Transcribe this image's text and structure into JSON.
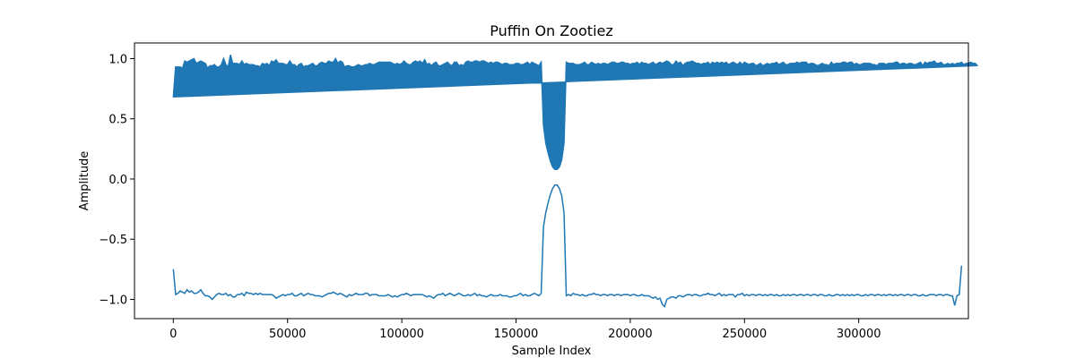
{
  "chart_data": {
    "type": "line",
    "title": "Puffin On Zootiez",
    "xlabel": "Sample Index",
    "ylabel": "Amplitude",
    "xlim": [
      -17000,
      348000
    ],
    "ylim": [
      -1.16,
      1.13
    ],
    "xticks": [
      0,
      50000,
      100000,
      150000,
      200000,
      250000,
      300000
    ],
    "xtick_labels": [
      "0",
      "50000",
      "100000",
      "150000",
      "200000",
      "250000",
      "300000"
    ],
    "yticks": [
      -1.0,
      -0.5,
      0.0,
      0.5,
      1.0
    ],
    "ytick_labels": [
      "−1.0",
      "−0.5",
      "0.0",
      "0.5",
      "1.0"
    ],
    "grid": false,
    "series": [
      {
        "color": "#1f77b4",
        "sample_count": 331000,
        "sample_step": 1000,
        "envelope_upper": [
          0.68,
          0.93,
          0.93,
          0.93,
          0.92,
          0.98,
          0.97,
          0.98,
          0.99,
          1.0,
          0.96,
          0.97,
          0.98,
          0.97,
          0.96,
          0.92,
          0.94,
          0.94,
          0.95,
          0.93,
          0.93,
          0.95,
          1.0,
          0.95,
          0.93,
          1.03,
          0.96,
          0.96,
          0.96,
          0.95,
          0.98,
          0.95,
          0.96,
          0.95,
          0.95,
          0.95,
          0.94,
          0.94,
          0.93,
          0.96,
          0.95,
          0.96,
          0.94,
          0.98,
          0.97,
          0.99,
          0.96,
          0.96,
          0.96,
          0.95,
          0.95,
          0.98,
          0.95,
          0.95,
          0.93,
          0.95,
          0.96,
          0.93,
          0.94,
          0.94,
          0.95,
          0.96,
          0.94,
          0.94,
          0.96,
          0.97,
          0.96,
          0.96,
          0.98,
          0.97,
          0.97,
          1.0,
          0.96,
          0.98,
          0.97,
          0.93,
          0.94,
          0.94,
          0.93,
          0.93,
          0.94,
          0.95,
          0.94,
          0.94,
          0.95,
          0.95,
          0.96,
          0.95,
          0.95,
          0.96,
          0.97,
          0.97,
          0.97,
          0.97,
          0.97,
          0.97,
          0.96,
          0.95,
          0.96,
          0.95,
          0.96,
          0.98,
          0.96,
          0.95,
          0.95,
          0.97,
          0.98,
          0.97,
          0.98,
          0.96,
          0.99,
          0.95,
          0.96,
          0.94,
          0.96,
          0.97,
          0.94,
          0.94,
          0.95,
          0.96,
          0.97,
          0.95,
          0.94,
          0.97,
          0.97,
          0.94,
          0.95,
          0.94,
          0.97,
          0.98,
          0.97,
          0.97,
          0.98,
          0.98,
          0.97,
          0.98,
          0.98,
          0.97,
          0.96,
          0.97,
          0.96,
          0.97,
          0.97,
          0.96,
          0.95,
          0.96,
          0.96,
          0.95,
          0.95,
          0.95,
          0.96,
          0.96,
          0.95,
          0.95,
          0.96,
          0.97,
          0.95,
          0.97,
          0.96,
          0.95,
          0.94,
          0.97,
          0.45,
          0.3,
          0.22,
          0.15,
          0.1,
          0.08,
          0.08,
          0.1,
          0.16,
          0.3,
          0.97,
          0.96,
          0.96,
          0.96,
          0.95,
          0.95,
          0.95,
          0.96,
          0.97,
          0.95,
          0.95,
          0.97,
          0.96,
          0.95,
          0.96,
          0.95,
          0.96,
          0.96,
          0.95,
          0.96,
          0.97,
          0.97,
          0.96,
          0.96,
          0.97,
          0.97,
          0.96,
          0.96,
          0.95,
          0.96,
          0.96,
          0.97,
          0.95,
          0.97,
          0.96,
          0.96,
          0.95,
          0.96,
          0.97,
          0.95,
          0.96,
          0.97,
          0.96,
          0.97,
          0.98,
          0.97,
          0.95,
          0.95,
          0.98,
          0.96,
          0.97,
          0.94,
          0.96,
          0.97,
          0.97,
          0.98,
          0.97,
          0.96,
          0.96,
          0.95,
          0.96,
          0.96,
          0.97,
          0.95,
          0.97,
          0.96,
          0.97,
          0.96,
          0.97,
          0.96,
          0.97,
          0.95,
          0.96,
          0.97,
          0.96,
          0.95,
          0.97,
          0.95,
          0.97,
          0.96,
          0.95,
          0.96,
          0.96,
          0.94,
          0.95,
          0.96,
          0.94,
          0.95,
          0.96,
          0.95,
          0.96,
          0.96,
          0.97,
          0.95,
          0.96,
          0.97,
          0.95,
          0.95,
          0.96,
          0.96,
          0.96,
          0.97,
          0.96,
          0.97,
          0.97,
          0.97,
          0.95,
          0.96,
          0.96,
          0.95,
          0.94,
          0.95,
          0.96,
          0.95,
          0.95,
          0.94,
          0.97,
          0.95,
          0.96,
          0.96,
          0.96,
          0.97,
          0.97,
          0.96,
          0.97,
          0.97,
          0.95,
          0.96,
          0.95,
          0.95,
          0.96,
          0.96,
          0.96,
          0.96,
          0.95,
          0.95,
          0.94,
          0.96,
          0.96,
          0.96,
          0.95,
          0.96,
          0.96,
          0.96,
          0.97,
          0.97,
          0.95,
          0.96,
          0.96,
          0.95,
          0.96,
          0.96,
          0.95,
          0.95,
          0.96,
          0.97,
          0.94,
          0.97,
          0.96,
          0.97,
          0.97,
          0.98,
          0.96,
          0.96,
          0.97,
          0.95,
          0.95,
          0.96,
          0.95,
          0.96,
          0.95,
          0.96,
          0.96,
          0.97,
          0.95,
          0.96,
          0.96,
          0.97,
          0.96,
          0.96,
          0.94
        ],
        "envelope_lower": [
          -0.75,
          -0.96,
          -0.95,
          -0.93,
          -0.94,
          -0.95,
          -0.92,
          -0.94,
          -0.93,
          -0.95,
          -0.95,
          -0.94,
          -0.92,
          -0.95,
          -0.97,
          -0.97,
          -0.98,
          -1.0,
          -0.98,
          -0.96,
          -0.95,
          -0.96,
          -0.96,
          -0.95,
          -0.97,
          -0.96,
          -0.98,
          -0.98,
          -0.96,
          -0.96,
          -0.95,
          -0.97,
          -0.94,
          -0.95,
          -0.95,
          -0.96,
          -0.95,
          -0.96,
          -0.95,
          -0.96,
          -0.96,
          -0.96,
          -0.96,
          -0.96,
          -0.97,
          -0.99,
          -0.98,
          -0.97,
          -0.96,
          -0.97,
          -0.96,
          -0.96,
          -0.95,
          -0.97,
          -0.97,
          -0.96,
          -0.95,
          -0.97,
          -0.96,
          -0.95,
          -0.96,
          -0.96,
          -0.97,
          -0.97,
          -0.97,
          -0.98,
          -0.97,
          -0.96,
          -0.95,
          -0.95,
          -0.94,
          -0.95,
          -0.96,
          -0.95,
          -0.96,
          -0.97,
          -0.98,
          -0.96,
          -0.97,
          -0.96,
          -0.95,
          -0.96,
          -0.96,
          -0.96,
          -0.95,
          -0.95,
          -0.97,
          -0.96,
          -0.96,
          -0.96,
          -0.97,
          -0.97,
          -0.97,
          -0.97,
          -0.96,
          -0.97,
          -0.98,
          -0.97,
          -0.98,
          -0.97,
          -0.96,
          -0.96,
          -0.95,
          -0.96,
          -0.97,
          -0.96,
          -0.96,
          -0.96,
          -0.96,
          -0.96,
          -0.97,
          -0.98,
          -0.97,
          -0.98,
          -0.99,
          -0.97,
          -0.96,
          -0.96,
          -0.95,
          -0.97,
          -0.96,
          -0.95,
          -0.96,
          -0.97,
          -0.96,
          -0.95,
          -0.96,
          -0.97,
          -0.97,
          -0.96,
          -0.97,
          -0.96,
          -0.95,
          -0.97,
          -0.96,
          -0.97,
          -0.97,
          -0.98,
          -0.97,
          -0.96,
          -0.97,
          -0.97,
          -0.97,
          -0.96,
          -0.97,
          -0.97,
          -0.97,
          -0.98,
          -0.98,
          -0.97,
          -0.97,
          -0.96,
          -0.95,
          -0.97,
          -0.96,
          -0.97,
          -0.97,
          -0.96,
          -0.95,
          -0.96,
          -0.97,
          -0.95,
          -0.4,
          -0.28,
          -0.2,
          -0.13,
          -0.08,
          -0.05,
          -0.05,
          -0.08,
          -0.14,
          -0.28,
          -0.97,
          -0.96,
          -0.97,
          -0.95,
          -0.96,
          -0.96,
          -0.97,
          -0.96,
          -0.97,
          -0.97,
          -0.96,
          -0.96,
          -0.95,
          -0.96,
          -0.96,
          -0.97,
          -0.96,
          -0.96,
          -0.97,
          -0.96,
          -0.96,
          -0.97,
          -0.96,
          -0.96,
          -0.97,
          -0.96,
          -0.96,
          -0.96,
          -0.97,
          -0.96,
          -0.96,
          -0.97,
          -0.97,
          -0.96,
          -0.97,
          -0.97,
          -0.97,
          -0.98,
          -0.99,
          -0.98,
          -1.0,
          -0.99,
          -1.04,
          -1.06,
          -1.0,
          -0.99,
          -0.98,
          -0.98,
          -0.99,
          -0.97,
          -0.97,
          -0.98,
          -0.97,
          -0.96,
          -0.96,
          -0.97,
          -0.96,
          -0.96,
          -0.97,
          -0.97,
          -0.96,
          -0.96,
          -0.95,
          -0.96,
          -0.96,
          -0.97,
          -0.96,
          -0.95,
          -0.97,
          -0.96,
          -0.97,
          -0.96,
          -0.96,
          -0.96,
          -0.98,
          -0.96,
          -0.96,
          -0.95,
          -0.97,
          -0.96,
          -0.97,
          -0.96,
          -0.96,
          -0.97,
          -0.96,
          -0.96,
          -0.97,
          -0.96,
          -0.97,
          -0.96,
          -0.96,
          -0.97,
          -0.96,
          -0.97,
          -0.97,
          -0.96,
          -0.97,
          -0.96,
          -0.97,
          -0.96,
          -0.96,
          -0.97,
          -0.96,
          -0.96,
          -0.97,
          -0.96,
          -0.96,
          -0.97,
          -0.96,
          -0.96,
          -0.97,
          -0.96,
          -0.96,
          -0.97,
          -0.97,
          -0.96,
          -0.97,
          -0.97,
          -0.96,
          -0.96,
          -0.97,
          -0.96,
          -0.97,
          -0.96,
          -0.97,
          -0.96,
          -0.97,
          -0.96,
          -0.96,
          -0.97,
          -0.97,
          -0.96,
          -0.97,
          -0.96,
          -0.96,
          -0.97,
          -0.96,
          -0.96,
          -0.97,
          -0.96,
          -0.97,
          -0.96,
          -0.96,
          -0.97,
          -0.96,
          -0.97,
          -0.96,
          -0.96,
          -0.97,
          -0.96,
          -0.96,
          -0.97,
          -0.96,
          -0.96,
          -0.97,
          -0.97,
          -0.96,
          -0.97,
          -0.97,
          -0.96,
          -0.96,
          -0.96,
          -0.97,
          -0.96,
          -0.96,
          -0.97,
          -0.96,
          -0.96,
          -0.97,
          -0.97,
          -1.05,
          -0.97,
          -0.96,
          -0.72
        ]
      }
    ]
  }
}
